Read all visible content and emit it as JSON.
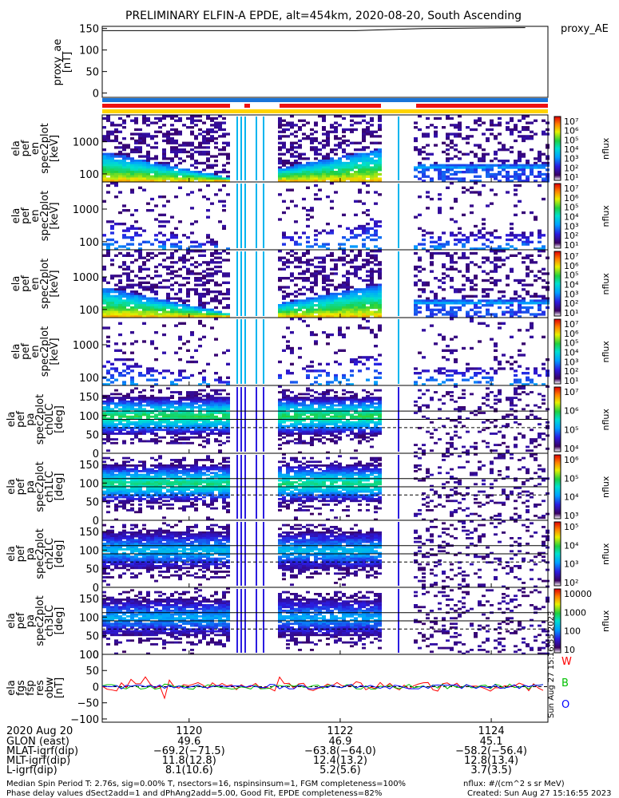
{
  "title": "PRELIMINARY ELFIN-A EPDE, alt=454km, 2020-08-20, South Ascending",
  "colors": {
    "bar_blue": "#1a74d8",
    "bar_red": "#ee1111",
    "bar_yellow": "#ffd400",
    "res_red": "#ff0000",
    "res_green": "#00c000",
    "res_blue": "#0000ff"
  },
  "chart_data": [
    {
      "type": "line",
      "ylabel": "proxy_ae [nT]",
      "legend": "proxy_AE",
      "ylim": [
        -10,
        155
      ],
      "yticks": [
        "150",
        "100",
        "50",
        "0"
      ],
      "x": [
        1118.85,
        1122.2,
        1123.1,
        1124.45
      ],
      "y": [
        145,
        145,
        150,
        152
      ]
    },
    {
      "type": "heatmap",
      "ylabel": [
        "ela",
        "pef",
        "en",
        "spec2plot",
        "[keV]"
      ],
      "yscale": "log",
      "yticks": [
        "1000",
        "100"
      ],
      "colorbar_label": "nflux",
      "colorbar_ticks": [
        "10⁷",
        "10⁶",
        "10⁵",
        "10⁴",
        "10³",
        "10²",
        "10¹"
      ]
    },
    {
      "type": "heatmap",
      "ylabel": [
        "ela",
        "pef",
        "en",
        "spec2plot",
        "[keV]"
      ],
      "yscale": "log",
      "yticks": [
        "1000",
        "100"
      ],
      "colorbar_label": "nflux",
      "colorbar_ticks": [
        "10⁷",
        "10⁶",
        "10⁵",
        "10⁴",
        "10³",
        "10²",
        "10¹"
      ]
    },
    {
      "type": "heatmap",
      "ylabel": [
        "ela",
        "pef",
        "en",
        "spec2plot",
        "[keV]"
      ],
      "yscale": "log",
      "yticks": [
        "1000",
        "100"
      ],
      "colorbar_label": "nflux",
      "colorbar_ticks": [
        "10⁷",
        "10⁶",
        "10⁵",
        "10⁴",
        "10³",
        "10²",
        "10¹"
      ]
    },
    {
      "type": "heatmap",
      "ylabel": [
        "ela",
        "pef",
        "en",
        "spec2plot",
        "[keV]"
      ],
      "yscale": "log",
      "yticks": [
        "1000",
        "100"
      ],
      "colorbar_label": "nflux",
      "colorbar_ticks": [
        "10⁷",
        "10⁶",
        "10⁵",
        "10⁴",
        "10³",
        "10²",
        "10¹"
      ]
    },
    {
      "type": "heatmap",
      "ylabel": [
        "ela",
        "pef",
        "pa",
        "spec2plot",
        "ch0LC",
        "[deg]"
      ],
      "ylim": [
        0,
        180
      ],
      "yticks": [
        "150",
        "100",
        "50",
        "0"
      ],
      "colorbar_label": "nflux",
      "colorbar_ticks": [
        "10⁷",
        "10⁶",
        "10⁵",
        "10⁴"
      ]
    },
    {
      "type": "heatmap",
      "ylabel": [
        "ela",
        "pef",
        "pa",
        "spec2plot",
        "ch1LC",
        "[deg]"
      ],
      "ylim": [
        0,
        180
      ],
      "yticks": [
        "150",
        "100",
        "50",
        "0"
      ],
      "colorbar_label": "nflux",
      "colorbar_ticks": [
        "10⁶",
        "10⁵",
        "10⁴",
        "10³"
      ]
    },
    {
      "type": "heatmap",
      "ylabel": [
        "ela",
        "pef",
        "pa",
        "spec2plot",
        "ch2LC",
        "[deg]"
      ],
      "ylim": [
        0,
        180
      ],
      "yticks": [
        "150",
        "100",
        "50",
        "0"
      ],
      "colorbar_label": "nflux",
      "colorbar_ticks": [
        "10⁵",
        "10⁴",
        "10³",
        "10²"
      ]
    },
    {
      "type": "heatmap",
      "ylabel": [
        "ela",
        "pef",
        "pa",
        "spec2plot",
        "ch3LC",
        "[deg]"
      ],
      "ylim": [
        0,
        180
      ],
      "yticks": [
        "150",
        "100",
        "50",
        "0"
      ],
      "colorbar_label": "nflux",
      "colorbar_ticks": [
        "10000",
        "1000",
        "100",
        "10"
      ]
    },
    {
      "type": "line",
      "ylabel": [
        "ela",
        "fgs",
        "fsp",
        "res",
        "obw",
        "[nT]"
      ],
      "ylim": [
        -110,
        100
      ],
      "yticks": [
        "100",
        "50",
        "0",
        "−50",
        "−100"
      ],
      "series": [
        {
          "name": "W",
          "color": "#ff0000"
        },
        {
          "name": "B",
          "color": "#00c000"
        },
        {
          "name": "O",
          "color": "#0000ff"
        }
      ],
      "side_text": "Sun Aug 27 15:16:55 2023"
    }
  ],
  "xaxis": {
    "date": "2020 Aug 20",
    "ticks": [
      "1120",
      "1122",
      "1124"
    ],
    "rows": [
      {
        "label": "GLON (east)",
        "values": [
          "49.6",
          "46.9",
          "45.1"
        ]
      },
      {
        "label": "MLAT-igrf(dip)",
        "values": [
          "−69.2(−71.5)",
          "−63.8(−64.0)",
          "−58.2(−56.4)"
        ]
      },
      {
        "label": "MLT-igrf(dip)",
        "values": [
          "11.8(12.8)",
          "12.4(13.2)",
          "12.8(13.4)"
        ]
      },
      {
        "label": "L-igrf(dip)",
        "values": [
          "8.1(10.6)",
          "5.2(5.6)",
          "3.7(3.5)"
        ]
      }
    ]
  },
  "footer": {
    "left1": "Median Spin Period T: 2.76s, sig=0.00% T, nsectors=16, nspinsinsum=1, FGM completeness=100%",
    "left2": "Phase delay values dSect2add=1 and dPhAng2add=5.00, Good Fit, EPDE completeness=82%",
    "right1": "nflux: #/(cm^2 s sr MeV)",
    "right2": "Created: Sun Aug 27 15:16:55 2023"
  }
}
